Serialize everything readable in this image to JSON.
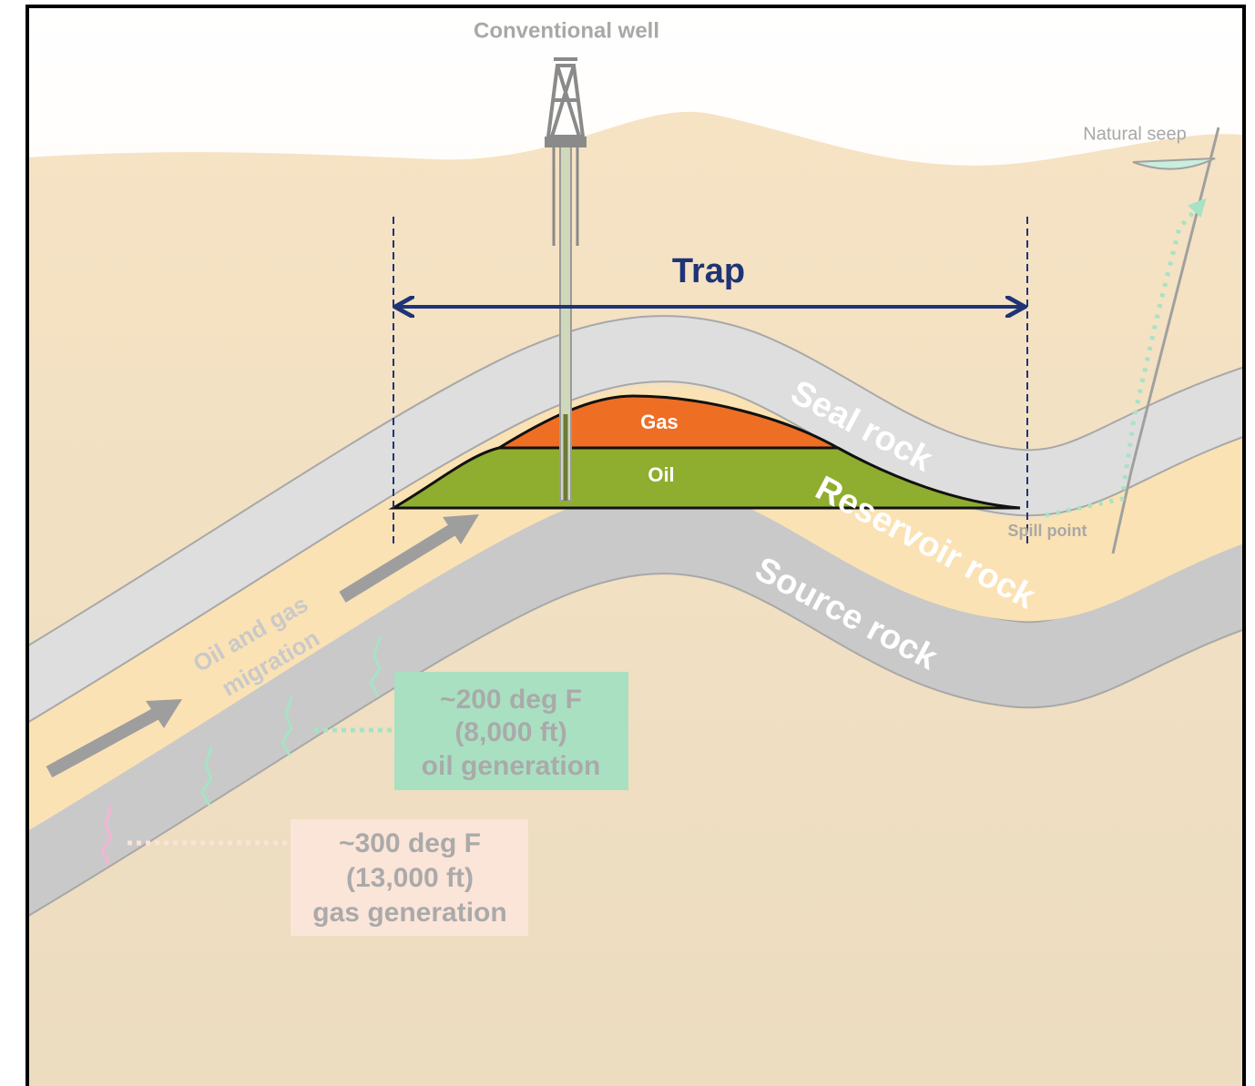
{
  "labels": {
    "well": "Conventional well",
    "seep": "Natural seep",
    "trap": "Trap",
    "gas": "Gas",
    "oil": "Oil",
    "seal": "Seal rock",
    "reservoir": "Reservoir rock",
    "source": "Source rock",
    "spill": "Spill point",
    "migration": [
      "Oil and gas",
      "migration"
    ],
    "oil_window": [
      "~200 deg F",
      "(8,000 ft)",
      "oil generation"
    ],
    "gas_window": [
      "~300 deg F",
      "(13,000 ft)",
      "gas generation"
    ]
  }
}
